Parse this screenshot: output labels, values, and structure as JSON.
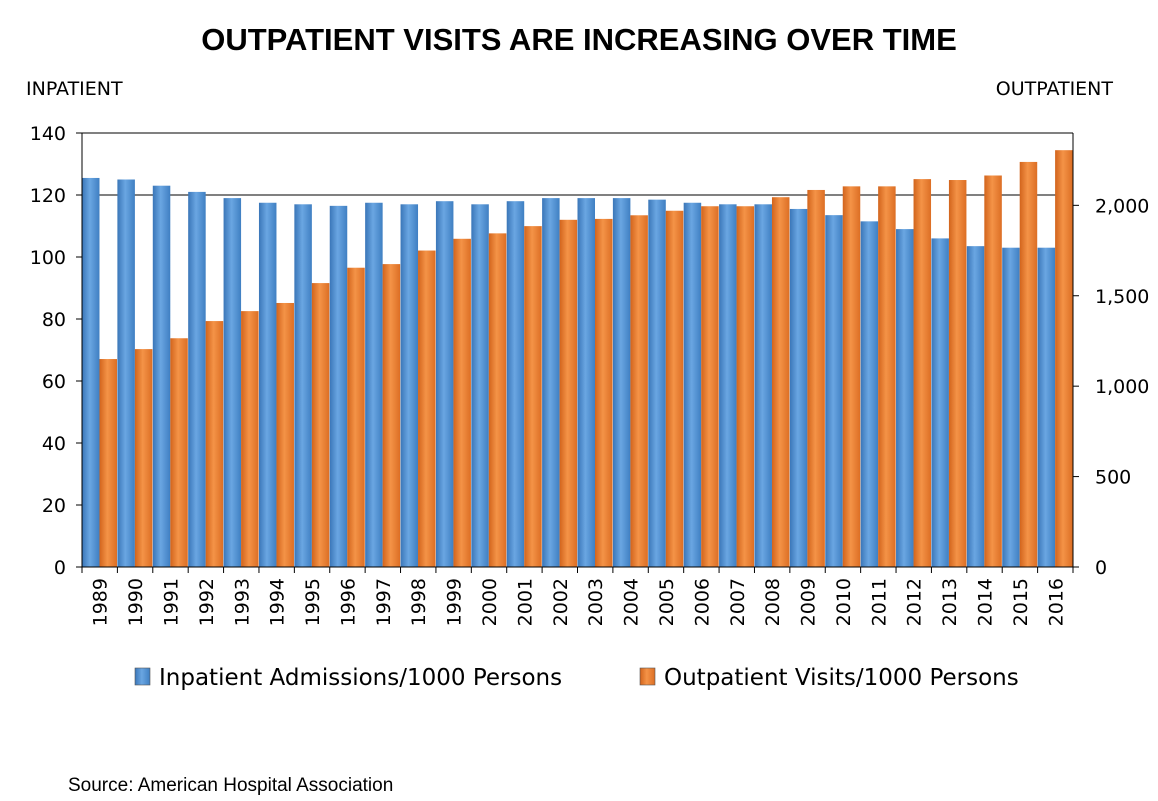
{
  "chart_data": {
    "type": "bar",
    "title": "OUTPATIENT VISITS ARE INCREASING OVER TIME",
    "ylabel_left": "INPATIENT",
    "ylabel_right": "OUTPATIENT",
    "categories": [
      "1989",
      "1990",
      "1991",
      "1992",
      "1993",
      "1994",
      "1995",
      "1996",
      "1997",
      "1998",
      "1999",
      "2000",
      "2001",
      "2002",
      "2003",
      "2004",
      "2005",
      "2006",
      "2007",
      "2008",
      "2009",
      "2010",
      "2011",
      "2012",
      "2013",
      "2014",
      "2015",
      "2016"
    ],
    "ylim_left": [
      0,
      140
    ],
    "yticks_left": [
      0,
      20,
      40,
      60,
      80,
      100,
      120,
      140
    ],
    "ylim_right": [
      0,
      2400
    ],
    "yticks_right": [
      0,
      500,
      1000,
      1500,
      2000
    ],
    "ytick_labels_right": [
      "0",
      "500",
      "1,000",
      "1,500",
      "2,000"
    ],
    "series": [
      {
        "name": "Inpatient Admissions/1000 Persons",
        "axis": "left",
        "color": "#4f8fd1",
        "values": [
          125.5,
          125,
          123,
          121,
          119,
          117.5,
          117,
          116.5,
          117.5,
          117,
          118,
          117,
          118,
          119,
          119,
          119,
          118.5,
          117.5,
          117,
          117,
          115.5,
          113.5,
          111.5,
          109,
          106,
          103.5,
          103,
          103
        ]
      },
      {
        "name": "Outpatient Visits/1000 Persons",
        "axis": "right",
        "color": "#e87a2d",
        "values": [
          1150,
          1205,
          1265,
          1360,
          1415,
          1460,
          1570,
          1655,
          1675,
          1750,
          1815,
          1845,
          1885,
          1920,
          1925,
          1945,
          1970,
          1995,
          1995,
          2045,
          2085,
          2105,
          2105,
          2145,
          2140,
          2165,
          2240,
          2305
        ]
      }
    ],
    "legend_position": "bottom",
    "grid": "horizontal at top only"
  },
  "source": "Source: American Hospital Association"
}
